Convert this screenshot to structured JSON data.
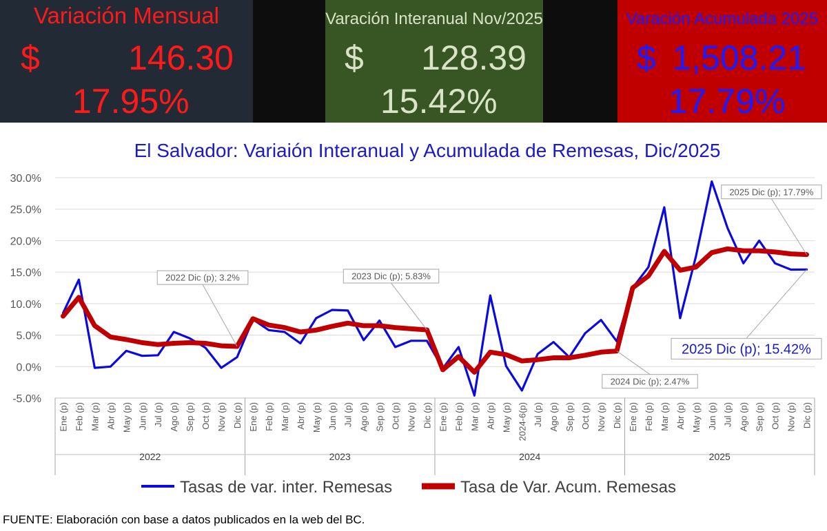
{
  "kpi_monthly": {
    "title": "Variación Mensual",
    "currency": "$",
    "amount": "146.30",
    "percent": "17.95%",
    "bg": "#222b35",
    "color": "#ff1a1a"
  },
  "kpi_interannual": {
    "title": "Varación Interanual Nov/2025",
    "currency": "$",
    "amount": "128.39",
    "percent": "15.42%",
    "bg": "#375623",
    "color": "#d9e3c6"
  },
  "kpi_cumulative": {
    "title": "Varación Acumulada 2025",
    "currency": "$",
    "amount": "1,508.21",
    "percent": "17.79%",
    "bg": "#c00000",
    "color": "#1b1bff"
  },
  "chart_data": {
    "type": "line",
    "title": "El Salvador:  Variaión Interanual y Acumulada de Remesas, Dic/2025",
    "ylim": [
      -5,
      30
    ],
    "yticks": [
      "-5.0%",
      "0.0%",
      "5.0%",
      "10.0%",
      "15.0%",
      "20.0%",
      "25.0%",
      "30.0%"
    ],
    "grid": true,
    "legend_position": "bottom",
    "groups": [
      {
        "label": "2022",
        "months": [
          "Ene (p)",
          "Feb (p)",
          "Mar (p)",
          "Abr (p)",
          "May (p)",
          "Jun (p)",
          "Jul (p)",
          "Ago (p)",
          "Sep (p)",
          "Oct (p)",
          "Nov (p)",
          "Dic (p)"
        ]
      },
      {
        "label": "2023",
        "months": [
          "Ene (p)",
          "Feb (p)",
          "Mar (p)",
          "Abr (p)",
          "May (p)",
          "Jun (p)",
          "Jul (p)",
          "Ago (p)",
          "Sep (p)",
          "Oct (p)",
          "Nov (p)",
          "Dic (p)"
        ]
      },
      {
        "label": "2024",
        "months": [
          "Ene (p)",
          "Feb (p)",
          "Mar (p)",
          "Abr (p)",
          "May (p)",
          "2024-6(p)",
          "Jul (p)",
          "Ago (p)",
          "Sep (p)",
          "Oct (p)",
          "Nov (p)",
          "Dic (p)"
        ]
      },
      {
        "label": "2025",
        "months": [
          "Ene (p)",
          "Feb (p)",
          "Mar (p)",
          "Abr (p)",
          "May (p)",
          "Jun (p)",
          "Jul (p)",
          "Ago (p)",
          "Sep (p)",
          "Oct (p)",
          "Nov (p)",
          "Dic (p)"
        ]
      }
    ],
    "series": [
      {
        "name": "Tasas de var. inter. Remesas",
        "color": "#0a0ae0",
        "values": [
          8.5,
          13.8,
          -0.2,
          0.0,
          2.5,
          1.7,
          1.8,
          5.5,
          4.5,
          3.0,
          -0.2,
          1.5,
          7.5,
          5.8,
          5.5,
          3.7,
          7.7,
          9.0,
          8.9,
          4.2,
          7.3,
          3.1,
          4.1,
          4.1,
          -0.3,
          3.1,
          -4.6,
          11.3,
          0.1,
          -3.8,
          2.0,
          3.9,
          1.5,
          5.3,
          7.4,
          4.0,
          12.5,
          15.8,
          25.3,
          7.7,
          17.5,
          29.4,
          22.0,
          16.4,
          20.0,
          16.4,
          15.4,
          15.42
        ]
      },
      {
        "name": "Tasa de Var. Acum. Remesas",
        "color": "#c00000",
        "values": [
          8.0,
          11.0,
          6.5,
          4.7,
          4.3,
          3.8,
          3.5,
          3.7,
          3.8,
          3.7,
          3.3,
          3.2,
          7.6,
          6.6,
          6.2,
          5.5,
          5.8,
          6.4,
          6.9,
          6.5,
          6.5,
          6.2,
          6.0,
          5.83,
          -0.5,
          1.6,
          -0.9,
          2.3,
          1.9,
          0.9,
          1.1,
          1.4,
          1.4,
          1.8,
          2.3,
          2.47,
          12.5,
          14.4,
          18.3,
          15.3,
          15.8,
          18.1,
          18.7,
          18.4,
          18.4,
          18.2,
          17.9,
          17.79
        ]
      }
    ],
    "annotations": [
      {
        "text": "2022 Dic (p); 3.2%",
        "index": 11,
        "series": 1,
        "size": "small"
      },
      {
        "text": "2023 Dic (p); 5.83%",
        "index": 23,
        "series": 1,
        "size": "small"
      },
      {
        "text": "2024 Dic (p); 2.47%",
        "index": 35,
        "series": 1,
        "size": "small"
      },
      {
        "text": "2025 Dic (p); 17.79%",
        "index": 47,
        "series": 1,
        "size": "small"
      },
      {
        "text": "2025 Dic (p); 15.42%",
        "index": 47,
        "series": 0,
        "size": "large"
      }
    ]
  },
  "source": "FUENTE:   Elaboración con base a datos publicados en la web del BC."
}
